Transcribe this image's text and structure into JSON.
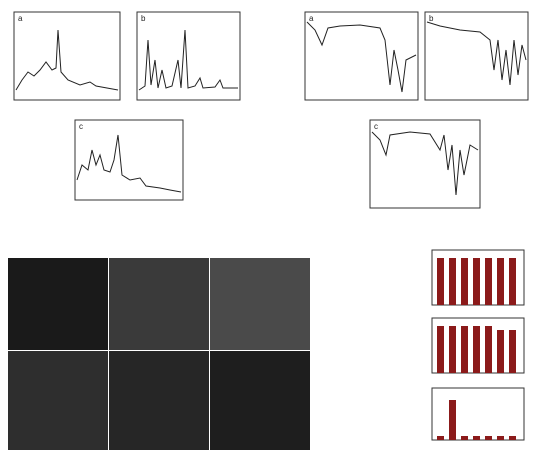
{
  "panels": {
    "xrd": [
      "a",
      "b",
      "c"
    ],
    "ftir": [
      "a",
      "b",
      "c"
    ]
  }
}
